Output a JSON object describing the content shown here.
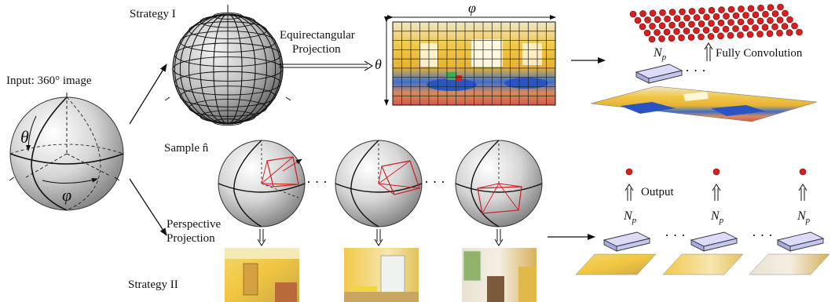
{
  "labels": {
    "input": "Input: 360° image",
    "strategy1": "Strategy I",
    "strategy2": "Strategy II",
    "equirect_line1": "Equirectangular",
    "equirect_line2": "Projection",
    "fully_conv": "Fully Convolution",
    "sample": "Sample n̂",
    "persp_line1": "Perspective",
    "persp_line2": "Projection",
    "output": "Output",
    "dots": "·  ·  ·"
  },
  "symbols": {
    "theta": "θ",
    "phi": "φ",
    "np": "N",
    "np_sub": "p"
  },
  "colors": {
    "node_red": "#d81e1e",
    "box_fill": "#c4c6f2",
    "box_top": "#dcdcfa",
    "patch_red": "#cc1f1f",
    "grid_line": "#222222"
  }
}
